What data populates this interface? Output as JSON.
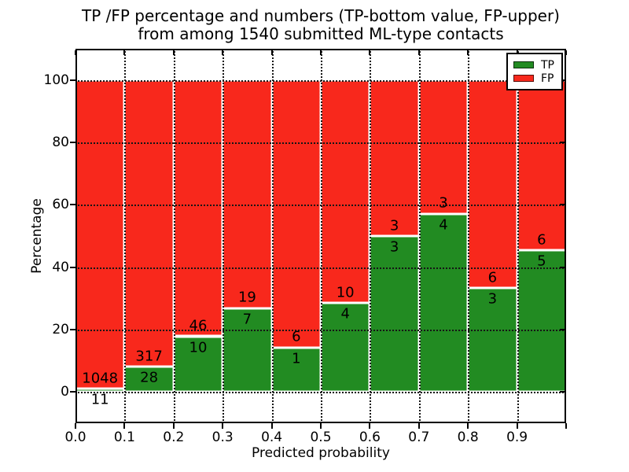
{
  "title": {
    "line1": "TP /FP percentage and numbers (TP-bottom value, FP-upper)",
    "line2": "from among 1540 submitted ML-type contacts"
  },
  "axes": {
    "xlabel": "Predicted probability",
    "ylabel": "Percentage",
    "xtick_labels": [
      "0.0",
      "0.1",
      "0.2",
      "0.3",
      "0.4",
      "0.5",
      "0.6",
      "0.7",
      "0.8",
      "0.9"
    ],
    "ytick_values": [
      0,
      20,
      40,
      60,
      80,
      100
    ],
    "xlim": [
      0.0,
      1.0
    ],
    "ylim": [
      -10,
      110
    ],
    "grid": "dotted black, horizontal and vertical, drawn above bars"
  },
  "legend": {
    "position": "upper-right",
    "items": [
      {
        "label": "TP",
        "color": "#228B22"
      },
      {
        "label": "FP",
        "color": "#F8281C"
      }
    ]
  },
  "chart_data": {
    "type": "bar",
    "stacked": true,
    "normalized_to": 100,
    "total_contacts": 1540,
    "bin_width": 0.1,
    "bin_starts": [
      0.0,
      0.1,
      0.2,
      0.3,
      0.4,
      0.5,
      0.6,
      0.7,
      0.8,
      0.9
    ],
    "series": [
      {
        "name": "TP",
        "position": "bottom",
        "color": "#228B22",
        "counts": [
          11,
          28,
          10,
          7,
          1,
          4,
          3,
          4,
          3,
          5
        ]
      },
      {
        "name": "FP",
        "position": "top",
        "color": "#F8281C",
        "counts": [
          1048,
          317,
          46,
          19,
          6,
          10,
          3,
          3,
          6,
          6
        ]
      }
    ],
    "tp_percent_of_bin": [
      1.04,
      8.12,
      17.86,
      26.92,
      14.29,
      28.57,
      50.0,
      57.14,
      33.33,
      45.45
    ],
    "annotation_note": "FP count printed just above the green/red boundary, TP count just below it"
  }
}
